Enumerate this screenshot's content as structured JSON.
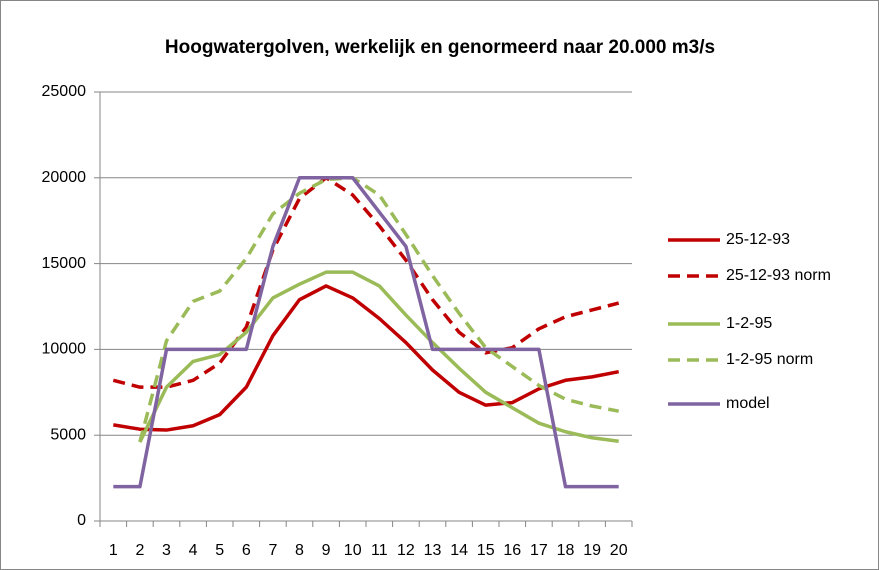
{
  "chart_data": {
    "type": "line",
    "title": "Hoogwatergolven, werkelijk en genormeerd naar 20.000 m3/s",
    "categories": [
      "1",
      "2",
      "3",
      "4",
      "5",
      "6",
      "7",
      "8",
      "9",
      "10",
      "11",
      "12",
      "13",
      "14",
      "15",
      "16",
      "17",
      "18",
      "19",
      "20"
    ],
    "series": [
      {
        "name": "25-12-93",
        "color": "#c00000",
        "dashed": false,
        "values": [
          5600,
          5350,
          5300,
          5550,
          6200,
          7800,
          10800,
          12900,
          13700,
          13000,
          11800,
          10400,
          8800,
          7500,
          6750,
          6900,
          7700,
          8200,
          8400,
          8700
        ]
      },
      {
        "name": "25-12-93 norm",
        "color": "#c00000",
        "dashed": true,
        "values": [
          8200,
          7800,
          7800,
          8200,
          9200,
          11300,
          15800,
          18800,
          20000,
          19000,
          17200,
          15200,
          12900,
          11000,
          9800,
          10100,
          11200,
          11900,
          12300,
          12700
        ]
      },
      {
        "name": "1-2-95",
        "color": "#9bbb59",
        "dashed": false,
        "values": [
          null,
          4600,
          7800,
          9300,
          9700,
          11000,
          13000,
          13800,
          14500,
          14500,
          13700,
          12000,
          10400,
          8900,
          7500,
          6600,
          5700,
          5200,
          4850,
          4650
        ]
      },
      {
        "name": "1-2-95 norm",
        "color": "#9bbb59",
        "dashed": true,
        "values": [
          null,
          4600,
          10500,
          12800,
          13400,
          15300,
          17900,
          19100,
          19900,
          20000,
          19000,
          16700,
          14300,
          12100,
          10100,
          9000,
          7900,
          7100,
          6700,
          6400
        ]
      },
      {
        "name": "model",
        "color": "#8064a2",
        "dashed": false,
        "values": [
          2000,
          2000,
          10000,
          10000,
          10000,
          10000,
          16000,
          20000,
          20000,
          20000,
          18000,
          16000,
          10000,
          10000,
          10000,
          10000,
          10000,
          2000,
          2000,
          2000
        ]
      }
    ],
    "ylim": [
      0,
      25000
    ],
    "yticks": [
      0,
      5000,
      10000,
      15000,
      20000,
      25000
    ],
    "grid": true,
    "legend": "right"
  }
}
